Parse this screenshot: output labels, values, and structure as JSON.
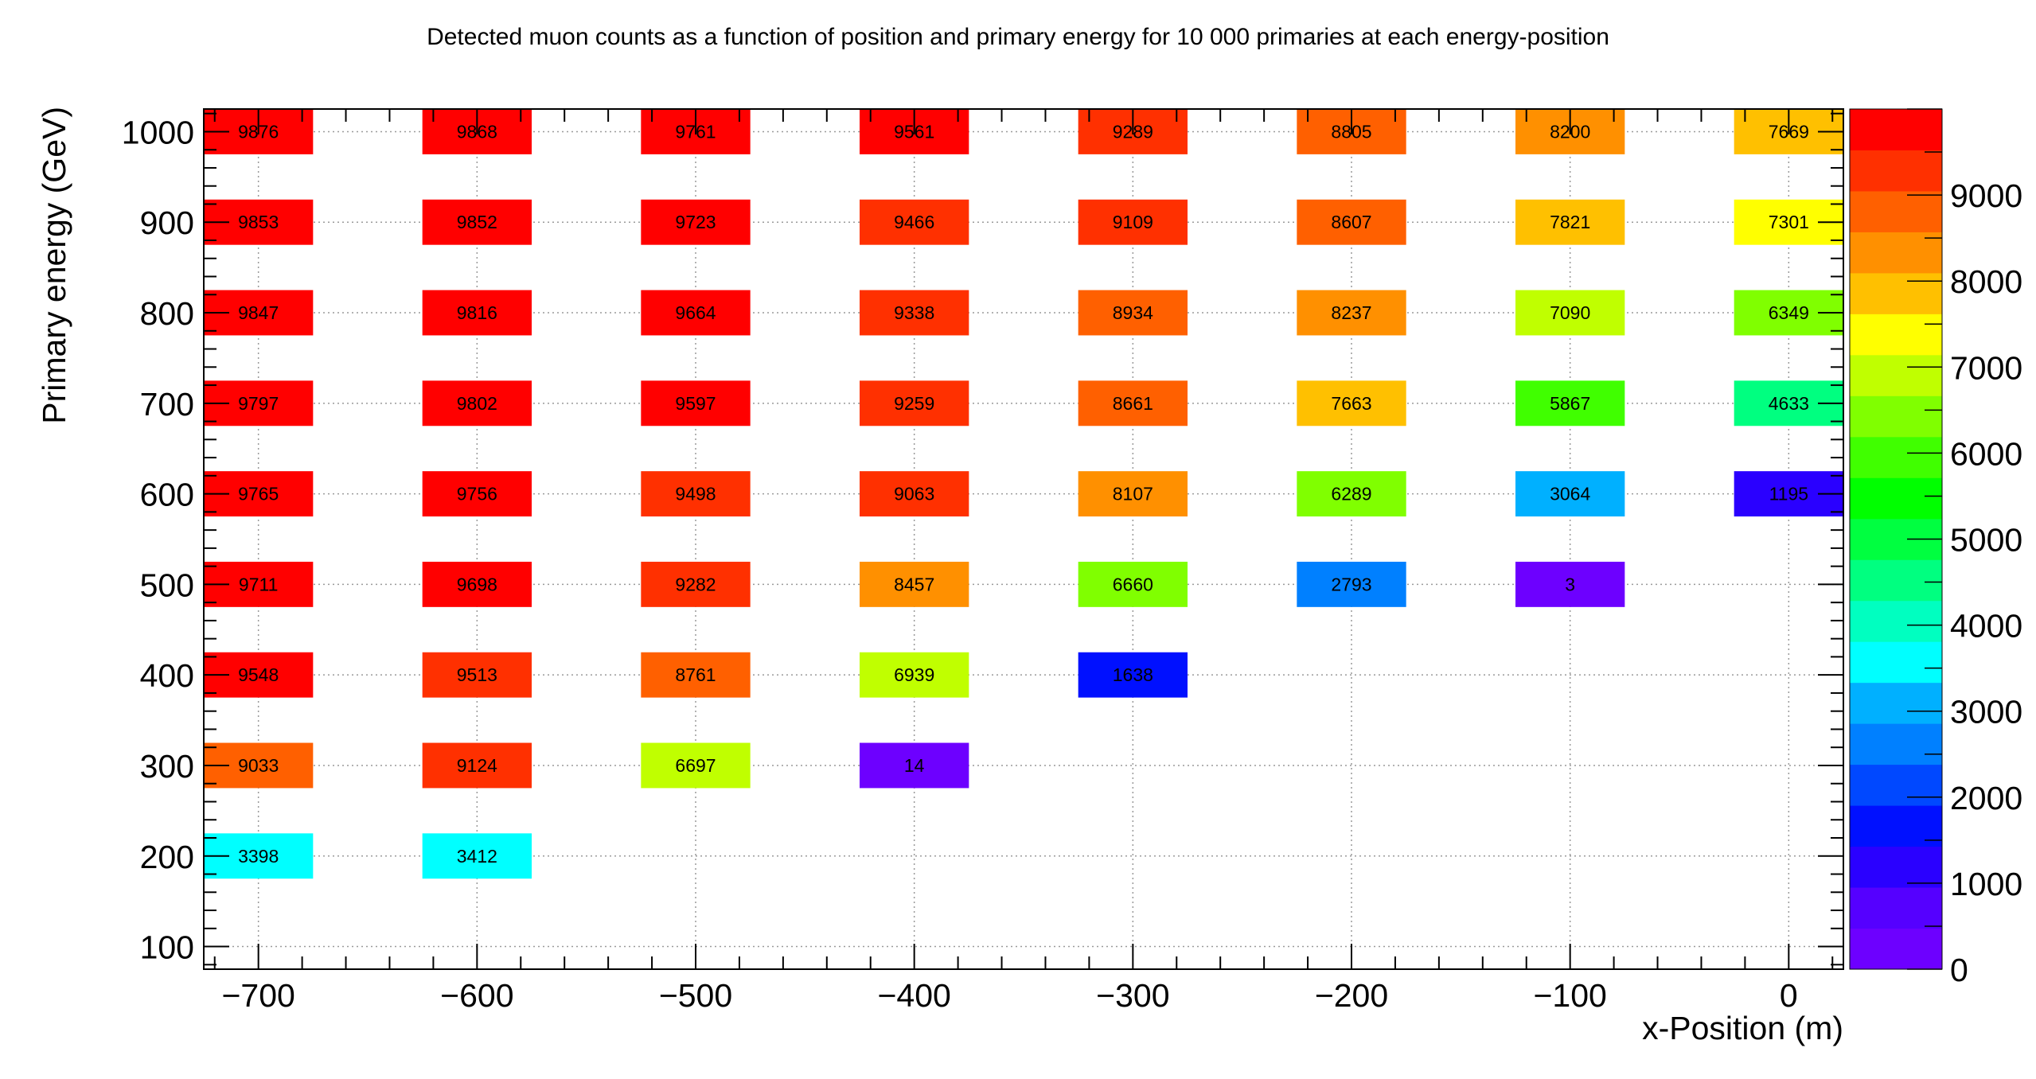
{
  "chart_data": {
    "type": "heatmap",
    "title": "Detected muon counts as a function of position and primary energy for 10 000 primaries at each energy-position",
    "xlabel": "x-Position (m)",
    "ylabel": "Primary energy (GeV)",
    "x_ticks": [
      "−700",
      "−600",
      "−500",
      "−400",
      "−300",
      "−200",
      "−100",
      "0"
    ],
    "y_ticks": [
      "100",
      "200",
      "300",
      "400",
      "500",
      "600",
      "700",
      "800",
      "900",
      "1000"
    ],
    "z_ticks": [
      "0",
      "1000",
      "2000",
      "3000",
      "4000",
      "5000",
      "6000",
      "7000",
      "8000",
      "9000"
    ],
    "xlim": [
      -725,
      25
    ],
    "ylim": [
      75,
      1025
    ],
    "zlim": [
      0,
      10000
    ],
    "grid": true,
    "palette": "rainbow",
    "palette_colors": [
      "#6d00ff",
      "#5500ff",
      "#2a00ff",
      "#0010ff",
      "#0048ff",
      "#0080ff",
      "#00b0ff",
      "#00ffff",
      "#00ffc0",
      "#00ff80",
      "#00ff40",
      "#00ff00",
      "#40ff00",
      "#80ff00",
      "#c0ff00",
      "#ffff00",
      "#ffc000",
      "#ff9000",
      "#ff6000",
      "#ff3000",
      "#ff0000"
    ],
    "points": [
      {
        "x": -700,
        "y": 1000,
        "value": 9876
      },
      {
        "x": -600,
        "y": 1000,
        "value": 9868
      },
      {
        "x": -500,
        "y": 1000,
        "value": 9761
      },
      {
        "x": -400,
        "y": 1000,
        "value": 9561
      },
      {
        "x": -300,
        "y": 1000,
        "value": 9289
      },
      {
        "x": -200,
        "y": 1000,
        "value": 8805
      },
      {
        "x": -100,
        "y": 1000,
        "value": 8200
      },
      {
        "x": 0,
        "y": 1000,
        "value": 7669
      },
      {
        "x": -700,
        "y": 900,
        "value": 9853
      },
      {
        "x": -600,
        "y": 900,
        "value": 9852
      },
      {
        "x": -500,
        "y": 900,
        "value": 9723
      },
      {
        "x": -400,
        "y": 900,
        "value": 9466
      },
      {
        "x": -300,
        "y": 900,
        "value": 9109
      },
      {
        "x": -200,
        "y": 900,
        "value": 8607
      },
      {
        "x": -100,
        "y": 900,
        "value": 7821
      },
      {
        "x": 0,
        "y": 900,
        "value": 7301
      },
      {
        "x": -700,
        "y": 800,
        "value": 9847
      },
      {
        "x": -600,
        "y": 800,
        "value": 9816
      },
      {
        "x": -500,
        "y": 800,
        "value": 9664
      },
      {
        "x": -400,
        "y": 800,
        "value": 9338
      },
      {
        "x": -300,
        "y": 800,
        "value": 8934
      },
      {
        "x": -200,
        "y": 800,
        "value": 8237
      },
      {
        "x": -100,
        "y": 800,
        "value": 7090
      },
      {
        "x": 0,
        "y": 800,
        "value": 6349
      },
      {
        "x": -700,
        "y": 700,
        "value": 9797
      },
      {
        "x": -600,
        "y": 700,
        "value": 9802
      },
      {
        "x": -500,
        "y": 700,
        "value": 9597
      },
      {
        "x": -400,
        "y": 700,
        "value": 9259
      },
      {
        "x": -300,
        "y": 700,
        "value": 8661
      },
      {
        "x": -200,
        "y": 700,
        "value": 7663
      },
      {
        "x": -100,
        "y": 700,
        "value": 5867
      },
      {
        "x": 0,
        "y": 700,
        "value": 4633
      },
      {
        "x": -700,
        "y": 600,
        "value": 9765
      },
      {
        "x": -600,
        "y": 600,
        "value": 9756
      },
      {
        "x": -500,
        "y": 600,
        "value": 9498
      },
      {
        "x": -400,
        "y": 600,
        "value": 9063
      },
      {
        "x": -300,
        "y": 600,
        "value": 8107
      },
      {
        "x": -200,
        "y": 600,
        "value": 6289
      },
      {
        "x": -100,
        "y": 600,
        "value": 3064
      },
      {
        "x": 0,
        "y": 600,
        "value": 1195
      },
      {
        "x": -700,
        "y": 500,
        "value": 9711
      },
      {
        "x": -600,
        "y": 500,
        "value": 9698
      },
      {
        "x": -500,
        "y": 500,
        "value": 9282
      },
      {
        "x": -400,
        "y": 500,
        "value": 8457
      },
      {
        "x": -300,
        "y": 500,
        "value": 6660
      },
      {
        "x": -200,
        "y": 500,
        "value": 2793
      },
      {
        "x": -100,
        "y": 500,
        "value": 3
      },
      {
        "x": -700,
        "y": 400,
        "value": 9548
      },
      {
        "x": -600,
        "y": 400,
        "value": 9513
      },
      {
        "x": -500,
        "y": 400,
        "value": 8761
      },
      {
        "x": -400,
        "y": 400,
        "value": 6939
      },
      {
        "x": -300,
        "y": 400,
        "value": 1638
      },
      {
        "x": -700,
        "y": 300,
        "value": 9033
      },
      {
        "x": -600,
        "y": 300,
        "value": 9124
      },
      {
        "x": -500,
        "y": 300,
        "value": 6697
      },
      {
        "x": -400,
        "y": 300,
        "value": 14
      },
      {
        "x": -700,
        "y": 200,
        "value": 3398
      },
      {
        "x": -600,
        "y": 200,
        "value": 3412
      }
    ]
  }
}
